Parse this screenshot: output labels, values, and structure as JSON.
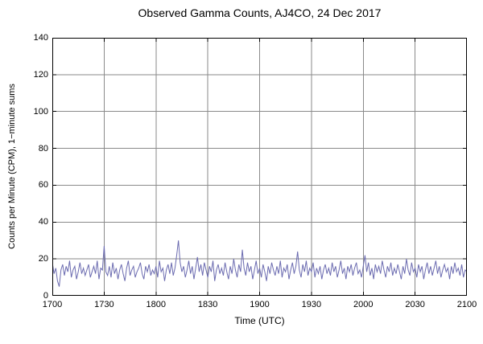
{
  "chart_data": {
    "type": "line",
    "title": "Observed Gamma Counts, AJ4CO, 24 Dec 2017",
    "xlabel": "Time (UTC)",
    "ylabel": "Counts per Minute (CPM), 1−minute sums",
    "xlim": [
      0,
      240
    ],
    "ylim": [
      0,
      140
    ],
    "grid": true,
    "legend_position": "none",
    "colors": {
      "background": "#ffffff",
      "grid": "#8a8a8a",
      "axis": "#000000",
      "text": "#000000",
      "line": "#6b6bb0"
    },
    "x_ticks": [
      {
        "value": 0,
        "label": "1700"
      },
      {
        "value": 30,
        "label": "1730"
      },
      {
        "value": 60,
        "label": "1800"
      },
      {
        "value": 90,
        "label": "1830"
      },
      {
        "value": 120,
        "label": "1900"
      },
      {
        "value": 150,
        "label": "1930"
      },
      {
        "value": 180,
        "label": "2000"
      },
      {
        "value": 210,
        "label": "2030"
      },
      {
        "value": 240,
        "label": "2100"
      }
    ],
    "y_ticks": [
      {
        "value": 0,
        "label": "0"
      },
      {
        "value": 20,
        "label": "20"
      },
      {
        "value": 40,
        "label": "40"
      },
      {
        "value": 60,
        "label": "60"
      },
      {
        "value": 80,
        "label": "80"
      },
      {
        "value": 100,
        "label": "100"
      },
      {
        "value": 120,
        "label": "120"
      },
      {
        "value": 140,
        "label": "140"
      }
    ],
    "series": [
      {
        "name": "gamma-counts-1-minute-sums",
        "x_start_minutes_after_1700": 0,
        "x_step_minutes": 1,
        "values": [
          18,
          12,
          15,
          8,
          5,
          14,
          17,
          11,
          16,
          13,
          19,
          10,
          14,
          16,
          9,
          13,
          18,
          12,
          15,
          11,
          14,
          17,
          10,
          13,
          16,
          12,
          19,
          9,
          15,
          14,
          27,
          13,
          11,
          16,
          10,
          18,
          12,
          15,
          9,
          14,
          17,
          12,
          8,
          15,
          19,
          11,
          14,
          16,
          10,
          13,
          15,
          18,
          12,
          9,
          16,
          13,
          17,
          11,
          14,
          12,
          16,
          10,
          19,
          13,
          15,
          8,
          14,
          17,
          12,
          18,
          11,
          15,
          22,
          30,
          18,
          13,
          16,
          10,
          14,
          19,
          12,
          16,
          9,
          15,
          21,
          13,
          17,
          11,
          18,
          14,
          10,
          16,
          13,
          19,
          8,
          14,
          17,
          12,
          15,
          11,
          18,
          13,
          9,
          16,
          12,
          20,
          14,
          10,
          17,
          13,
          25,
          15,
          11,
          18,
          13,
          16,
          9,
          14,
          19,
          12,
          15,
          10,
          17,
          13,
          8,
          16,
          12,
          18,
          14,
          11,
          16,
          12,
          19,
          10,
          15,
          13,
          17,
          9,
          14,
          18,
          12,
          16,
          24,
          14,
          10,
          17,
          13,
          19,
          11,
          15,
          13,
          18,
          10,
          15,
          12,
          16,
          9,
          14,
          17,
          12,
          15,
          11,
          18,
          13,
          16,
          10,
          14,
          19,
          12,
          15,
          9,
          16,
          13,
          17,
          11,
          15,
          18,
          12,
          14,
          10,
          16,
          22,
          13,
          18,
          11,
          15,
          9,
          17,
          13,
          16,
          12,
          19,
          14,
          10,
          16,
          13,
          18,
          11,
          15,
          12,
          17,
          13,
          9,
          16,
          12,
          20,
          14,
          11,
          18,
          13,
          15,
          10,
          17,
          13,
          16,
          9,
          14,
          18,
          12,
          16,
          11,
          15,
          19,
          12,
          16,
          10,
          14,
          17,
          13,
          15,
          9,
          16,
          12,
          18,
          13,
          15,
          11,
          17,
          10,
          14,
          13
        ]
      }
    ]
  }
}
